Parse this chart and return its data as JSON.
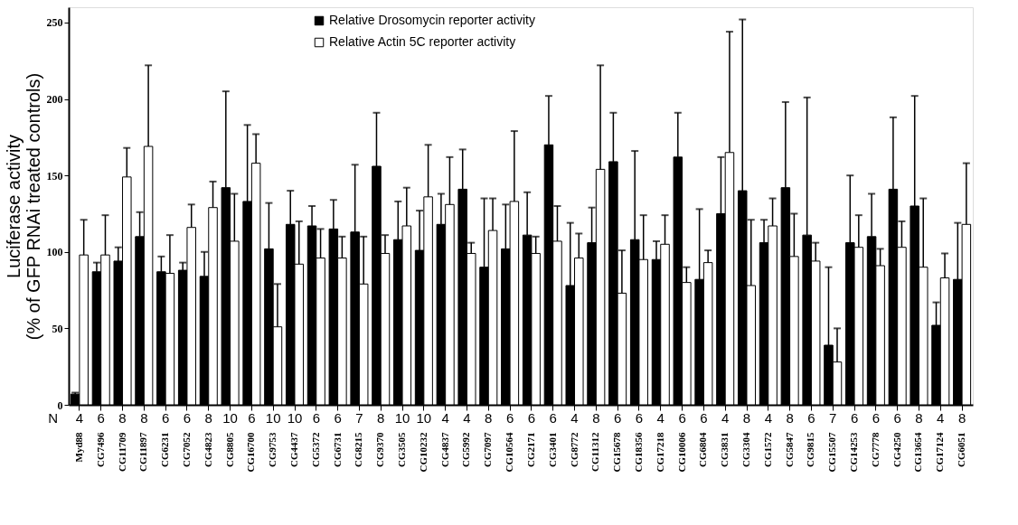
{
  "chart_data": {
    "type": "bar",
    "ylabel": "Luciferase activity\n(% of GFP RNAi treated controls)",
    "categories": [
      "Myd88",
      "CG7496",
      "CG11709",
      "CG11897",
      "CG6231",
      "CG7052",
      "CG4823",
      "CG8805",
      "CG16700",
      "CG9753",
      "CG4437",
      "CG5372",
      "CG6731",
      "CG8215",
      "CG9370",
      "CG3505",
      "CG10232",
      "CG4837",
      "CG5992",
      "CG7097",
      "CG10564",
      "CG2171",
      "CG3401",
      "CG8772",
      "CG11312",
      "CG15678",
      "CG18356",
      "CG17218",
      "CG10006",
      "CG6804",
      "CG3831",
      "CG3304",
      "CG1572",
      "CG5847",
      "CG9815",
      "CG15507",
      "CG14253",
      "CG7778",
      "CG4250",
      "CG13654",
      "CG17124",
      "CG6051"
    ],
    "series": [
      {
        "name": "Relative Drosomycin reporter activity",
        "color": "#000000",
        "values": [
          7,
          87,
          94,
          110,
          87,
          88,
          84,
          142,
          133,
          102,
          118,
          117,
          115,
          113,
          156,
          108,
          101,
          118,
          141,
          90,
          102,
          111,
          170,
          78,
          106,
          159,
          108,
          95,
          162,
          82,
          125,
          140,
          106,
          142,
          111,
          39,
          106,
          110,
          141,
          130,
          52,
          82
        ],
        "errors": [
          [
            7,
            8
          ],
          [
            87,
            93
          ],
          [
            94,
            103
          ],
          [
            110,
            126
          ],
          [
            87,
            97
          ],
          [
            88,
            93
          ],
          [
            84,
            100
          ],
          [
            142,
            205
          ],
          [
            133,
            183
          ],
          [
            102,
            132
          ],
          [
            118,
            140
          ],
          [
            117,
            130
          ],
          [
            115,
            134
          ],
          [
            113,
            157
          ],
          [
            156,
            191
          ],
          [
            108,
            133
          ],
          [
            101,
            127
          ],
          [
            118,
            138
          ],
          [
            141,
            167
          ],
          [
            90,
            135
          ],
          [
            102,
            131
          ],
          [
            111,
            139
          ],
          [
            170,
            202
          ],
          [
            78,
            119
          ],
          [
            106,
            129
          ],
          [
            159,
            191
          ],
          [
            108,
            166
          ],
          [
            95,
            107
          ],
          [
            162,
            191
          ],
          [
            82,
            128
          ],
          [
            125,
            162
          ],
          [
            140,
            252
          ],
          [
            106,
            121
          ],
          [
            142,
            198
          ],
          [
            111,
            201
          ],
          [
            39,
            90
          ],
          [
            106,
            150
          ],
          [
            110,
            138
          ],
          [
            141,
            188
          ],
          [
            130,
            202
          ],
          [
            52,
            67
          ],
          [
            82,
            119
          ]
        ]
      },
      {
        "name": "Relative Actin 5C reporter activity",
        "color": "#ffffff",
        "values": [
          98,
          98,
          149,
          169,
          86,
          116,
          129,
          107,
          158,
          51,
          92,
          96,
          96,
          79,
          99,
          117,
          136,
          131,
          99,
          114,
          133,
          99,
          107,
          96,
          154,
          73,
          95,
          105,
          80,
          93,
          165,
          78,
          117,
          97,
          94,
          28,
          103,
          91,
          103,
          90,
          83,
          118
        ],
        "errors": [
          [
            98,
            121
          ],
          [
            98,
            124
          ],
          [
            149,
            168
          ],
          [
            169,
            222
          ],
          [
            86,
            111
          ],
          [
            116,
            131
          ],
          [
            129,
            146
          ],
          [
            107,
            138
          ],
          [
            158,
            177
          ],
          [
            51,
            79
          ],
          [
            92,
            120
          ],
          [
            96,
            115
          ],
          [
            96,
            110
          ],
          [
            79,
            110
          ],
          [
            99,
            111
          ],
          [
            117,
            142
          ],
          [
            136,
            170
          ],
          [
            131,
            162
          ],
          [
            99,
            106
          ],
          [
            114,
            135
          ],
          [
            133,
            179
          ],
          [
            99,
            110
          ],
          [
            107,
            130
          ],
          [
            96,
            112
          ],
          [
            154,
            222
          ],
          [
            73,
            101
          ],
          [
            95,
            124
          ],
          [
            105,
            124
          ],
          [
            80,
            90
          ],
          [
            93,
            101
          ],
          [
            165,
            244
          ],
          [
            78,
            121
          ],
          [
            117,
            135
          ],
          [
            97,
            125
          ],
          [
            94,
            106
          ],
          [
            28,
            50
          ],
          [
            103,
            124
          ],
          [
            91,
            102
          ],
          [
            103,
            120
          ],
          [
            90,
            135
          ],
          [
            83,
            99
          ],
          [
            118,
            158
          ]
        ]
      }
    ],
    "ylim": [
      0,
      260
    ],
    "yticks": [
      0,
      50,
      100,
      150,
      200,
      250
    ],
    "legend": "top",
    "grid": false,
    "annotations": [
      "N",
      "4",
      "6",
      "8",
      "8",
      "6",
      "6",
      "8",
      "10",
      "6",
      "10",
      "10",
      "6",
      "6",
      "7",
      "8",
      "10",
      "10",
      "4",
      "4",
      "8",
      "6",
      "6",
      "6",
      "4",
      "8",
      "6",
      "6",
      "4",
      "6",
      "6",
      "4",
      "8",
      "4",
      "8",
      "6",
      "7",
      "6",
      "6",
      "6",
      "8",
      "4",
      "8"
    ]
  }
}
